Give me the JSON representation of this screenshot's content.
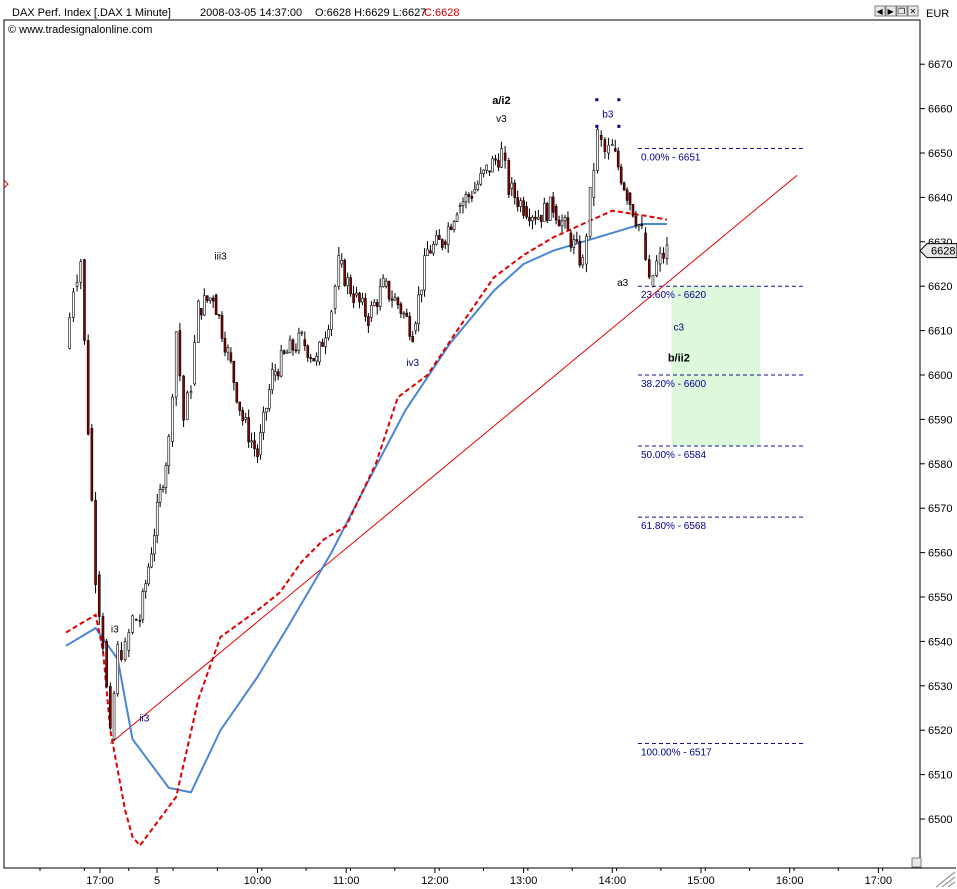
{
  "header": {
    "instrument": "DAX Perf. Index [.DAX  1 Minute]",
    "timestamp": "2008-03-05 14:37:00",
    "ohlc_prefix": "O:6628 H:6629 L:6627",
    "close": "C:6628",
    "copyright": "© www.tradesignalonline.com",
    "currency": "EUR",
    "close_color": "#d40000"
  },
  "window_buttons": [
    "left-arrow-icon",
    "right-arrow-icon",
    "restore-icon",
    "close-icon"
  ],
  "colors": {
    "up_candle": "#ffffff",
    "down_candle": "#8b0000",
    "candle_wick": "#000000",
    "ma_fast": "#e00000",
    "ma_slow": "#4a86d8",
    "trendline": "#e00000",
    "fib": "#1010a0",
    "target_zone": "#dcf9dc"
  },
  "chart_data": {
    "type": "candlestick",
    "title": "DAX Perf. Index [.DAX  1 Minute]",
    "y_range": [
      6490,
      6680
    ],
    "y_ticks": [
      6500,
      6510,
      6520,
      6530,
      6540,
      6550,
      6560,
      6570,
      6580,
      6590,
      6600,
      6610,
      6620,
      6630,
      6640,
      6650,
      6660,
      6670
    ],
    "last_price_label": "6628",
    "x_ticks": [
      "17:00",
      "5",
      "10:00",
      "11:00",
      "12:00",
      "13:00",
      "14:00",
      "15:00",
      "16:00",
      "17:00"
    ],
    "price_path": [
      [
        "16:37",
        6606
      ],
      [
        "16:42",
        6620
      ],
      [
        "16:47",
        6626
      ],
      [
        "16:52",
        6588
      ],
      [
        "16:57",
        6555
      ],
      [
        "17:02",
        6540
      ],
      [
        "17:07",
        6518
      ],
      [
        "17:12",
        6538
      ],
      [
        "17:17",
        6538
      ],
      [
        "17:22",
        6545
      ],
      [
        "17:27",
        6545
      ],
      [
        "09:00",
        6585
      ],
      [
        "09:05",
        6610
      ],
      [
        "09:10",
        6590
      ],
      [
        "09:15",
        6598
      ],
      [
        "09:20",
        6615
      ],
      [
        "09:30",
        6618
      ],
      [
        "09:40",
        6605
      ],
      [
        "09:50",
        6590
      ],
      [
        "10:00",
        6582
      ],
      [
        "10:10",
        6600
      ],
      [
        "10:20",
        6605
      ],
      [
        "10:30",
        6608
      ],
      [
        "10:40",
        6603
      ],
      [
        "10:50",
        6615
      ],
      [
        "10:55",
        6625
      ],
      [
        "11:05",
        6618
      ],
      [
        "11:15",
        6613
      ],
      [
        "11:25",
        6620
      ],
      [
        "11:35",
        6616
      ],
      [
        "11:45",
        6610
      ],
      [
        "11:55",
        6628
      ],
      [
        "12:05",
        6630
      ],
      [
        "12:15",
        6638
      ],
      [
        "12:25",
        6641
      ],
      [
        "12:35",
        6646
      ],
      [
        "12:45",
        6650
      ],
      [
        "12:50",
        6642
      ],
      [
        "13:00",
        6638
      ],
      [
        "13:10",
        6636
      ],
      [
        "13:20",
        6638
      ],
      [
        "13:30",
        6632
      ],
      [
        "13:40",
        6625
      ],
      [
        "13:45",
        6640
      ],
      [
        "13:50",
        6654
      ],
      [
        "13:55",
        6650
      ],
      [
        "14:00",
        6651
      ],
      [
        "14:10",
        6641
      ],
      [
        "14:20",
        6632
      ],
      [
        "14:25",
        6620
      ],
      [
        "14:30",
        6625
      ],
      [
        "14:37",
        6628
      ]
    ],
    "ma_fast": [
      [
        "16:37",
        6542
      ],
      [
        "16:57",
        6546
      ],
      [
        "17:02",
        6538
      ],
      [
        "17:07",
        6520
      ],
      [
        "17:17",
        6502
      ],
      [
        "17:22",
        6496
      ],
      [
        "17:27",
        6494
      ],
      [
        "09:05",
        6505
      ],
      [
        "09:20",
        6527
      ],
      [
        "09:35",
        6541
      ],
      [
        "10:00",
        6547
      ],
      [
        "10:15",
        6551
      ],
      [
        "10:30",
        6558
      ],
      [
        "10:45",
        6563
      ],
      [
        "11:00",
        6566
      ],
      [
        "11:20",
        6580
      ],
      [
        "11:35",
        6595
      ],
      [
        "11:55",
        6600
      ],
      [
        "12:15",
        6610
      ],
      [
        "12:40",
        6622
      ],
      [
        "13:00",
        6627
      ],
      [
        "13:20",
        6631
      ],
      [
        "13:40",
        6634
      ],
      [
        "14:00",
        6637
      ],
      [
        "14:20",
        6636
      ],
      [
        "14:37",
        6635
      ]
    ],
    "ma_slow": [
      [
        "16:37",
        6539
      ],
      [
        "16:57",
        6543
      ],
      [
        "17:12",
        6536
      ],
      [
        "17:22",
        6518
      ],
      [
        "09:00",
        6507
      ],
      [
        "09:15",
        6506
      ],
      [
        "09:35",
        6520
      ],
      [
        "10:00",
        6532
      ],
      [
        "10:20",
        6543
      ],
      [
        "10:50",
        6560
      ],
      [
        "11:10",
        6573
      ],
      [
        "11:40",
        6592
      ],
      [
        "12:10",
        6607
      ],
      [
        "12:40",
        6619
      ],
      [
        "13:00",
        6625
      ],
      [
        "13:20",
        6628
      ],
      [
        "13:40",
        6630
      ],
      [
        "14:00",
        6632
      ],
      [
        "14:20",
        6634
      ],
      [
        "14:37",
        6634
      ]
    ],
    "trendline": {
      "from": [
        "17:07",
        6517
      ],
      "to": [
        "16:05",
        6645
      ]
    },
    "fibonacci_levels": [
      {
        "label": "0.00% - 6651",
        "value": 6651
      },
      {
        "label": "23.60% - 6620",
        "value": 6620
      },
      {
        "label": "38.20% - 6600",
        "value": 6600
      },
      {
        "label": "50.00% - 6584",
        "value": 6584
      },
      {
        "label": "61.80% - 6568",
        "value": 6568
      },
      {
        "label": "100.00% - 6517",
        "value": 6517
      }
    ],
    "target_zone": {
      "from_time": "14:40",
      "to_time": "15:40",
      "low": 6584,
      "high": 6620
    },
    "wave_labels": [
      {
        "text": "a/i2",
        "time": "12:45",
        "price": 6661,
        "bold": true,
        "color": "#000000"
      },
      {
        "text": "v3",
        "time": "12:45",
        "price": 6657,
        "bold": false,
        "color": "#000000"
      },
      {
        "text": "b3",
        "time": "13:57",
        "price": 6658,
        "bold": false,
        "color": "#000080"
      },
      {
        "text": "iii3",
        "time": "09:35",
        "price": 6626,
        "bold": false,
        "color": "#000000"
      },
      {
        "text": "a3",
        "time": "14:07",
        "price": 6620,
        "bold": false,
        "color": "#000000"
      },
      {
        "text": "iv3",
        "time": "11:45",
        "price": 6602,
        "bold": false,
        "color": "#000080"
      },
      {
        "text": "c3",
        "time": "14:45",
        "price": 6610,
        "bold": false,
        "color": "#000080"
      },
      {
        "text": "b/ii2",
        "time": "14:45",
        "price": 6603,
        "bold": true,
        "color": "#000000"
      },
      {
        "text": "i3",
        "time": "17:10",
        "price": 6542,
        "bold": false,
        "color": "#000000"
      },
      {
        "text": "ii3",
        "time": "17:30",
        "price": 6522,
        "bold": false,
        "color": "#000080"
      }
    ],
    "grid": false,
    "legend": "none"
  }
}
